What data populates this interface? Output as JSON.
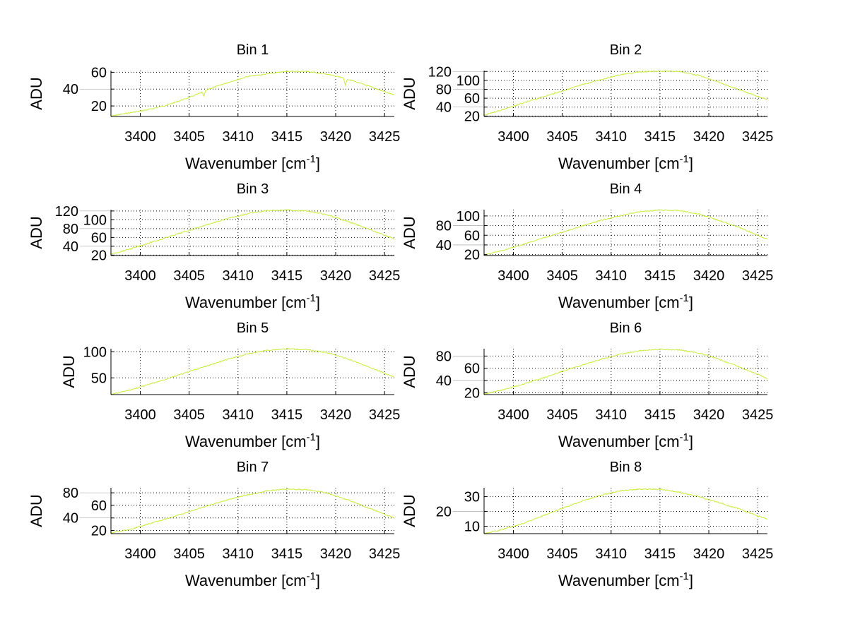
{
  "line_color": "#c8ec3c",
  "chart_data": [
    {
      "type": "line",
      "title": "Bin 1",
      "ylabel": "ADU",
      "xlabel_main": "Wavenumber [cm",
      "xlabel_sup": "-1",
      "xlabel_end": "]",
      "xlim": [
        3397,
        3426
      ],
      "ylim": [
        7.5,
        62
      ],
      "xticks": [
        3400,
        3405,
        3410,
        3415,
        3420,
        3425
      ],
      "yticks": [
        20,
        40,
        60
      ],
      "grid": true,
      "x": [
        3397,
        3399,
        3401,
        3403,
        3405,
        3406.3,
        3406.5,
        3406.7,
        3407,
        3409,
        3411,
        3413,
        3415,
        3417,
        3419,
        3420.8,
        3421,
        3421.2,
        3423,
        3425,
        3426
      ],
      "y": [
        8,
        12,
        16,
        22,
        30,
        36,
        32,
        38,
        40,
        48,
        55,
        58,
        61,
        61,
        58,
        53,
        45,
        52,
        45,
        37,
        33
      ]
    },
    {
      "type": "line",
      "title": "Bin 2",
      "ylabel": "ADU",
      "xlabel_main": "Wavenumber [cm",
      "xlabel_sup": "-1",
      "xlabel_end": "]",
      "xlim": [
        3397,
        3426
      ],
      "ylim": [
        19,
        122
      ],
      "xticks": [
        3400,
        3405,
        3410,
        3415,
        3420,
        3425
      ],
      "yticks": [
        20,
        40,
        60,
        80,
        100,
        120
      ],
      "grid": true,
      "x": [
        3397,
        3399,
        3401,
        3403,
        3405,
        3407,
        3409,
        3411,
        3413,
        3415,
        3417,
        3419,
        3421,
        3423,
        3425,
        3426
      ],
      "y": [
        22,
        35,
        49,
        63,
        76,
        90,
        102,
        113,
        119,
        121,
        120,
        111,
        96,
        80,
        64,
        57
      ]
    },
    {
      "type": "line",
      "title": "Bin 3",
      "ylabel": "ADU",
      "xlabel_main": "Wavenumber [cm",
      "xlabel_sup": "-1",
      "xlabel_end": "]",
      "xlim": [
        3397,
        3426
      ],
      "ylim": [
        19,
        123
      ],
      "xticks": [
        3400,
        3405,
        3410,
        3415,
        3420,
        3425
      ],
      "yticks": [
        20,
        40,
        60,
        80,
        100,
        120
      ],
      "grid": true,
      "x": [
        3397,
        3399,
        3401,
        3403,
        3405,
        3407,
        3409,
        3411,
        3413,
        3415,
        3417,
        3419,
        3421,
        3423,
        3425,
        3426
      ],
      "y": [
        22,
        34,
        48,
        62,
        76,
        90,
        103,
        114,
        121,
        122,
        120,
        112,
        98,
        82,
        65,
        57
      ]
    },
    {
      "type": "line",
      "title": "Bin 4",
      "ylabel": "ADU",
      "xlabel_main": "Wavenumber [cm",
      "xlabel_sup": "-1",
      "xlabel_end": "]",
      "xlim": [
        3397,
        3426
      ],
      "ylim": [
        18,
        113
      ],
      "xticks": [
        3400,
        3405,
        3410,
        3415,
        3420,
        3425
      ],
      "yticks": [
        20,
        40,
        60,
        80,
        100
      ],
      "grid": true,
      "x": [
        3397,
        3399,
        3401,
        3403,
        3405,
        3407,
        3409,
        3411,
        3413,
        3415,
        3417,
        3419,
        3421,
        3423,
        3425,
        3426
      ],
      "y": [
        19,
        29,
        41,
        54,
        66,
        79,
        91,
        101,
        109,
        112,
        111,
        104,
        91,
        77,
        60,
        52
      ]
    },
    {
      "type": "line",
      "title": "Bin 5",
      "ylabel": "ADU",
      "xlabel_main": "Wavenumber [cm",
      "xlabel_sup": "-1",
      "xlabel_end": "]",
      "xlim": [
        3397,
        3426
      ],
      "ylim": [
        18,
        106
      ],
      "xticks": [
        3400,
        3405,
        3410,
        3415,
        3420,
        3425
      ],
      "yticks": [
        50,
        100
      ],
      "grid": true,
      "x": [
        3397,
        3399,
        3401,
        3403,
        3405,
        3407,
        3409,
        3411,
        3413,
        3415,
        3417,
        3419,
        3421,
        3423,
        3425,
        3426
      ],
      "y": [
        18,
        27,
        38,
        50,
        62,
        74,
        86,
        96,
        103,
        106,
        104,
        99,
        88,
        74,
        59,
        52
      ]
    },
    {
      "type": "line",
      "title": "Bin 6",
      "ylabel": "ADU",
      "xlabel_main": "Wavenumber [cm",
      "xlabel_sup": "-1",
      "xlabel_end": "]",
      "xlim": [
        3397,
        3426
      ],
      "ylim": [
        17,
        92
      ],
      "xticks": [
        3400,
        3405,
        3410,
        3415,
        3420,
        3425
      ],
      "yticks": [
        20,
        40,
        60,
        80
      ],
      "grid": true,
      "x": [
        3397,
        3399,
        3401,
        3403,
        3405,
        3407,
        3409,
        3411,
        3413,
        3415,
        3417,
        3419,
        3421,
        3423,
        3425,
        3426
      ],
      "y": [
        18,
        25,
        34,
        44,
        55,
        65,
        75,
        83,
        89,
        91,
        90,
        85,
        75,
        63,
        50,
        43
      ]
    },
    {
      "type": "line",
      "title": "Bin 7",
      "ylabel": "ADU",
      "xlabel_main": "Wavenumber [cm",
      "xlabel_sup": "-1",
      "xlabel_end": "]",
      "xlim": [
        3397,
        3426
      ],
      "ylim": [
        15,
        88
      ],
      "xticks": [
        3400,
        3405,
        3410,
        3415,
        3420,
        3425
      ],
      "yticks": [
        20,
        40,
        60,
        80
      ],
      "grid": true,
      "x": [
        3397,
        3399,
        3401,
        3403,
        3405,
        3407,
        3409,
        3411,
        3413,
        3415,
        3417,
        3419,
        3421,
        3423,
        3425,
        3426
      ],
      "y": [
        16,
        22,
        31,
        40,
        50,
        60,
        69,
        77,
        83,
        86,
        85,
        80,
        70,
        58,
        46,
        40
      ]
    },
    {
      "type": "line",
      "title": "Bin 8",
      "ylabel": "ADU",
      "xlabel_main": "Wavenumber [cm",
      "xlabel_sup": "-1",
      "xlabel_end": "]",
      "xlim": [
        3397,
        3426
      ],
      "ylim": [
        5,
        36
      ],
      "xticks": [
        3400,
        3405,
        3410,
        3415,
        3420,
        3425
      ],
      "yticks": [
        10,
        20,
        30
      ],
      "grid": true,
      "x": [
        3397,
        3399,
        3401,
        3403,
        3405,
        3407,
        3409,
        3411,
        3413,
        3415,
        3417,
        3419,
        3421,
        3423,
        3425,
        3426
      ],
      "y": [
        5,
        8,
        12,
        17,
        22,
        27,
        31,
        34,
        35,
        35,
        33,
        30,
        26,
        22,
        17,
        15
      ]
    }
  ]
}
